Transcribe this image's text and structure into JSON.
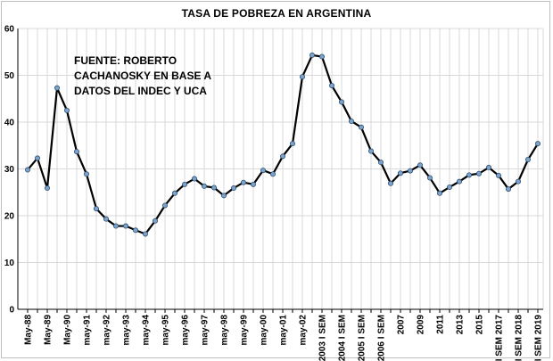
{
  "chart_data": {
    "type": "line",
    "title": "TASA DE POBREZA EN ARGENTINA",
    "source_note": "FUENTE: ROBERTO CACHANOSKY EN BASE A DATOS DEL INDEC Y UCA",
    "xlabel": "",
    "ylabel": "",
    "ylim": [
      0,
      60
    ],
    "yticks": [
      0,
      10,
      20,
      30,
      40,
      50,
      60
    ],
    "grid": true,
    "legend": "none",
    "colors": {
      "line": "#000000",
      "marker": "#7ba3cc",
      "grid": "#d9d9d9",
      "axis": "#000000"
    },
    "x_tick_labels": [
      {
        "index": 0,
        "label": "May-88"
      },
      {
        "index": 2,
        "label": "May-89"
      },
      {
        "index": 4,
        "label": "May-90"
      },
      {
        "index": 6,
        "label": "may-91"
      },
      {
        "index": 8,
        "label": "may-92"
      },
      {
        "index": 10,
        "label": "may-93"
      },
      {
        "index": 12,
        "label": "may-94"
      },
      {
        "index": 14,
        "label": "may-95"
      },
      {
        "index": 16,
        "label": "may-96"
      },
      {
        "index": 18,
        "label": "may-97"
      },
      {
        "index": 20,
        "label": "may-98"
      },
      {
        "index": 22,
        "label": "may-99"
      },
      {
        "index": 24,
        "label": "may-00"
      },
      {
        "index": 26,
        "label": "may-01"
      },
      {
        "index": 28,
        "label": "may-02"
      },
      {
        "index": 30,
        "label": "2003 I SEM"
      },
      {
        "index": 32,
        "label": "2004 I SEM"
      },
      {
        "index": 34,
        "label": "2005 I SEM"
      },
      {
        "index": 36,
        "label": "2006 I SEM"
      },
      {
        "index": 38,
        "label": "2007"
      },
      {
        "index": 40,
        "label": "2009"
      },
      {
        "index": 42,
        "label": "2011"
      },
      {
        "index": 44,
        "label": "2013"
      },
      {
        "index": 46,
        "label": "2015"
      },
      {
        "index": 48,
        "label": "I SEM 2017"
      },
      {
        "index": 50,
        "label": "I SEM 2018"
      },
      {
        "index": 52,
        "label": "I SEM 2019"
      }
    ],
    "series": [
      {
        "name": "Tasa de pobreza",
        "values": [
          29.8,
          32.3,
          25.9,
          47.3,
          42.5,
          33.7,
          28.9,
          21.5,
          19.3,
          17.8,
          17.8,
          16.9,
          16.1,
          18.9,
          22.2,
          24.8,
          26.7,
          27.9,
          26.3,
          26.0,
          24.3,
          25.9,
          27.1,
          26.7,
          29.7,
          28.9,
          32.7,
          35.4,
          49.7,
          54.3,
          54.0,
          47.8,
          44.3,
          40.2,
          38.9,
          33.8,
          31.4,
          26.9,
          29.1,
          29.6,
          30.8,
          28.1,
          24.8,
          26.1,
          27.3,
          28.7,
          29.0,
          30.3,
          28.6,
          25.7,
          27.3,
          32.0,
          35.4
        ]
      }
    ]
  }
}
